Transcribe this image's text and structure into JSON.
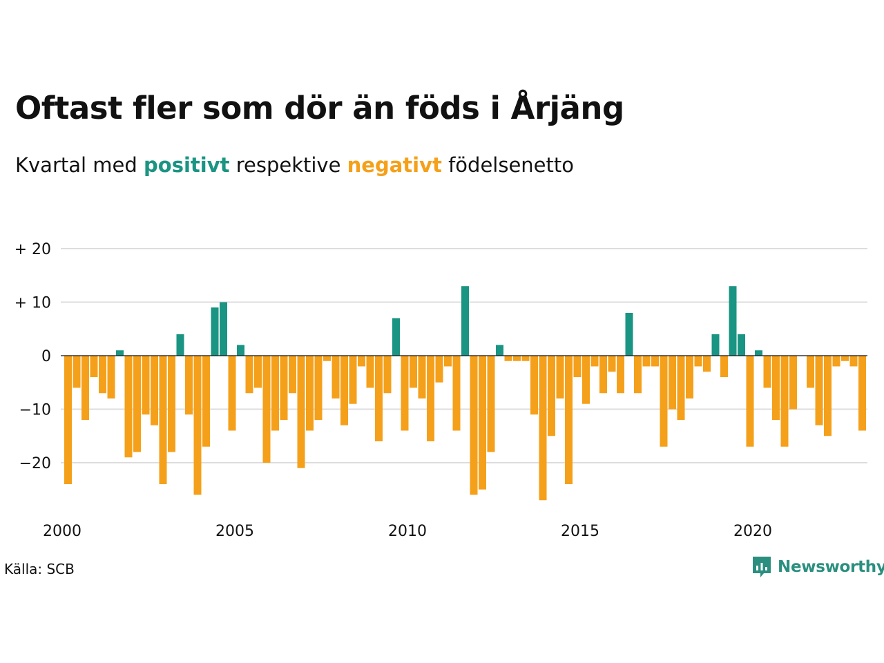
{
  "title": "Oftast fler som dör än föds i Årjäng",
  "subtitle": {
    "prefix": "Kvartal med",
    "positive_word": "positivt",
    "middle": "respektive",
    "negative_word": "negativt",
    "suffix": "födelsenetto"
  },
  "source": "Källa: SCB",
  "logo_text": "Newsworthy",
  "colors": {
    "positive": "#1a9483",
    "negative": "#f5a01a",
    "grid": "#dddddd",
    "logo": "#2a8f7f"
  },
  "chart_data": {
    "type": "bar",
    "title": "Oftast fler som dör än föds i Årjäng",
    "x_start": "2000Q1",
    "x_ticks": [
      "2000",
      "2005",
      "2010",
      "2015",
      "2020"
    ],
    "y_ticks": [
      "+ 20",
      "+ 10",
      "0",
      "−10",
      "−20"
    ],
    "ylim": [
      -28,
      20
    ],
    "grid": true,
    "values": [
      -24,
      -6,
      -12,
      -4,
      -7,
      -8,
      1,
      -19,
      -18,
      -11,
      -13,
      -24,
      -18,
      4,
      -11,
      -26,
      -17,
      9,
      10,
      -14,
      2,
      -7,
      -6,
      -20,
      -14,
      -12,
      -7,
      -21,
      -14,
      -12,
      -1,
      -8,
      -13,
      -9,
      -2,
      -6,
      -16,
      -7,
      7,
      -14,
      -6,
      -8,
      -16,
      -5,
      -2,
      -14,
      13,
      -26,
      -25,
      -18,
      2,
      -1,
      -1,
      -1,
      -11,
      -27,
      -15,
      -8,
      -24,
      -4,
      -9,
      -2,
      -7,
      -3,
      -7,
      8,
      -7,
      -2,
      -2,
      -17,
      -10,
      -12,
      -8,
      -2,
      -3,
      4,
      -4,
      13,
      4,
      -17,
      1,
      -6,
      -12,
      -17,
      -10,
      0,
      -6,
      -13,
      -15,
      -2,
      -1,
      -2,
      -14
    ]
  }
}
